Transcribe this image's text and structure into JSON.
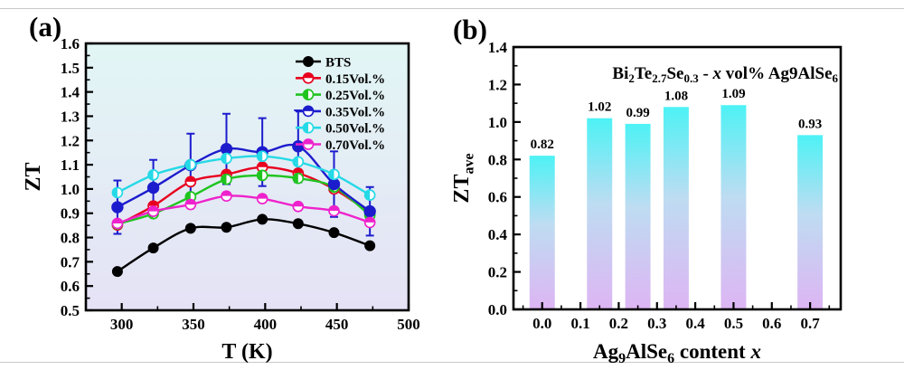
{
  "page": {
    "background": "#ffffff",
    "rule_color": "#c9c9c9"
  },
  "chart_data": [
    {
      "id": "a",
      "type": "line",
      "panel_label": "(a)",
      "xlabel": "T (K)",
      "ylabel": "ZT",
      "xlim": [
        275,
        500
      ],
      "ylim": [
        0.5,
        1.6
      ],
      "x_major_ticks": [
        300,
        350,
        400,
        450,
        500
      ],
      "x_minor_ticks": [
        325,
        375,
        425,
        475
      ],
      "y_major_ticks": [
        0.5,
        0.6,
        0.7,
        0.8,
        0.9,
        1.0,
        1.1,
        1.2,
        1.3,
        1.4,
        1.5,
        1.6
      ],
      "y_minor_ticks": [
        0.55,
        0.65,
        0.75,
        0.85,
        0.95,
        1.05,
        1.15,
        1.25,
        1.35,
        1.45,
        1.55
      ],
      "grid": false,
      "legend_position": "top-right",
      "plot_bg_gradient": [
        "#e2f6f5",
        "#e5e2f5"
      ],
      "x": [
        297,
        322,
        348,
        373,
        398,
        423,
        448,
        473
      ],
      "series": [
        {
          "name": "BTS",
          "color": "#000000",
          "marker": "full",
          "values": [
            0.66,
            0.757,
            0.838,
            0.842,
            0.875,
            0.857,
            0.82,
            0.766
          ]
        },
        {
          "name": "0.15Vol.%",
          "color": "#e8001f",
          "marker": "half-top",
          "values": [
            0.852,
            0.93,
            1.03,
            1.06,
            1.09,
            1.065,
            1.0,
            0.903
          ]
        },
        {
          "name": "0.25Vol.%",
          "color": "#1fc41f",
          "marker": "half-left",
          "values": [
            0.856,
            0.898,
            0.968,
            1.04,
            1.056,
            1.044,
            1.008,
            0.892
          ]
        },
        {
          "name": "0.35Vol.%",
          "color": "#1c1ccd",
          "marker": "full",
          "legend_marker": "half-top",
          "marker_size": 6.2,
          "values": [
            0.925,
            1.005,
            1.098,
            1.165,
            1.152,
            1.176,
            1.02,
            0.908
          ],
          "errors": [
            0.11,
            0.115,
            0.13,
            0.145,
            0.14,
            0.148,
            0.135,
            0.1
          ]
        },
        {
          "name": "0.50Vol.%",
          "color": "#25d9e6",
          "marker": "half-left",
          "values": [
            0.985,
            1.058,
            1.1,
            1.126,
            1.135,
            1.112,
            1.06,
            0.975
          ]
        },
        {
          "name": "0.70Vol.%",
          "color": "#ee22cc",
          "marker": "half-top",
          "values": [
            0.858,
            0.908,
            0.936,
            0.971,
            0.96,
            0.928,
            0.91,
            0.862
          ]
        }
      ]
    },
    {
      "id": "b",
      "type": "bar",
      "panel_label": "(b)",
      "title_segments": [
        {
          "t": "Bi"
        },
        {
          "t": "2",
          "sub": true
        },
        {
          "t": "Te"
        },
        {
          "t": "2.7",
          "sub": true
        },
        {
          "t": "Se"
        },
        {
          "t": "0.3",
          "sub": true
        },
        {
          "t": " - "
        },
        {
          "t": "x",
          "italic": true
        },
        {
          "t": " vol% Ag"
        },
        {
          "t": "9"
        },
        {
          "t": "AlSe"
        },
        {
          "t": "6",
          "sub": true
        }
      ],
      "xlabel_segments": [
        {
          "t": "Ag"
        },
        {
          "t": "9",
          "sub": true
        },
        {
          "t": "AlSe"
        },
        {
          "t": "6",
          "sub": true
        },
        {
          "t": " content "
        },
        {
          "t": "x",
          "italic": true
        }
      ],
      "ylabel_segments": [
        {
          "t": "ZT"
        },
        {
          "t": "ave",
          "sub": true
        }
      ],
      "xlim": [
        -0.075,
        0.78
      ],
      "ylim": [
        0,
        1.4
      ],
      "x_major_ticks": [
        0.0,
        0.1,
        0.2,
        0.3,
        0.4,
        0.5,
        0.6,
        0.7
      ],
      "x_minor_ticks": [
        -0.05,
        0.05,
        0.15,
        0.25,
        0.35,
        0.45,
        0.55,
        0.65,
        0.75
      ],
      "y_major_ticks": [
        0.0,
        0.2,
        0.4,
        0.6,
        0.8,
        1.0,
        1.2,
        1.4
      ],
      "y_minor_ticks": [
        0.1,
        0.3,
        0.5,
        0.7,
        0.9,
        1.1,
        1.3
      ],
      "grid": false,
      "categories_x": [
        0.0,
        0.15,
        0.25,
        0.35,
        0.5,
        0.7
      ],
      "values": [
        0.82,
        1.02,
        0.99,
        1.08,
        1.09,
        0.93
      ],
      "bar_labels": [
        "0.82",
        "1.02",
        "0.99",
        "1.08",
        "1.09",
        "0.93"
      ],
      "bar_width_x": 0.066,
      "bar_gradient": [
        "#4df2f5",
        "#bedcf2",
        "#ddb5f3"
      ]
    }
  ]
}
